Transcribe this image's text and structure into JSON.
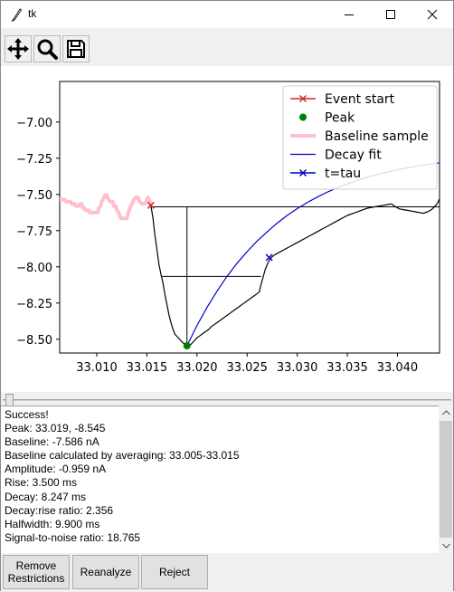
{
  "window": {
    "title": "tk"
  },
  "toolbar": {
    "buttons": [
      {
        "icon": "move-icon"
      },
      {
        "icon": "zoom-icon"
      },
      {
        "icon": "save-icon"
      }
    ]
  },
  "chart_data": {
    "type": "line",
    "title": "",
    "xlabel": "",
    "ylabel": "",
    "xlim": [
      33.0063,
      33.0442
    ],
    "ylim": [
      -8.595,
      -6.72
    ],
    "x_ticks": [
      "33.010",
      "33.015",
      "33.020",
      "33.025",
      "33.030",
      "33.035",
      "33.040"
    ],
    "x_tick_values": [
      33.01,
      33.015,
      33.02,
      33.025,
      33.03,
      33.035,
      33.04
    ],
    "y_ticks": [
      "−7.00",
      "−7.25",
      "−7.50",
      "−7.75",
      "−8.00",
      "−8.25",
      "−8.50"
    ],
    "y_tick_values": [
      -7.0,
      -7.25,
      -7.5,
      -7.75,
      -8.0,
      -8.25,
      -8.5
    ],
    "legend_position": "top-right",
    "colors": {
      "trace": "#000000",
      "event_start": "#d62728",
      "peak": "#008000",
      "baseline": "#ffc0cb",
      "decay_fit": "#0000cc",
      "tau": "#0000cc"
    },
    "series": [
      {
        "name": "Event start",
        "kind": "marker-x",
        "points": [
          [
            33.0154,
            -7.575
          ]
        ]
      },
      {
        "name": "Peak",
        "kind": "marker-dot",
        "points": [
          [
            33.019,
            -8.545
          ]
        ]
      },
      {
        "name": "Baseline sample",
        "kind": "thick-line",
        "points": [
          [
            33.0063,
            -7.535
          ],
          [
            33.0068,
            -7.535
          ],
          [
            33.0069,
            -7.55
          ],
          [
            33.0074,
            -7.55
          ],
          [
            33.0075,
            -7.565
          ],
          [
            33.0078,
            -7.565
          ],
          [
            33.0079,
            -7.58
          ],
          [
            33.0082,
            -7.58
          ],
          [
            33.0083,
            -7.565
          ],
          [
            33.0085,
            -7.565
          ],
          [
            33.0086,
            -7.595
          ],
          [
            33.0088,
            -7.595
          ],
          [
            33.0089,
            -7.61
          ],
          [
            33.0092,
            -7.61
          ],
          [
            33.0093,
            -7.625
          ],
          [
            33.0101,
            -7.625
          ],
          [
            33.0102,
            -7.595
          ],
          [
            33.0104,
            -7.58
          ],
          [
            33.0105,
            -7.55
          ],
          [
            33.0107,
            -7.525
          ],
          [
            33.0108,
            -7.505
          ],
          [
            33.011,
            -7.505
          ],
          [
            33.0111,
            -7.525
          ],
          [
            33.0113,
            -7.55
          ],
          [
            33.0116,
            -7.55
          ],
          [
            33.0117,
            -7.58
          ],
          [
            33.0119,
            -7.58
          ],
          [
            33.012,
            -7.61
          ],
          [
            33.0122,
            -7.625
          ],
          [
            33.0124,
            -7.665
          ],
          [
            33.013,
            -7.665
          ],
          [
            33.0131,
            -7.64
          ],
          [
            33.0133,
            -7.595
          ],
          [
            33.0135,
            -7.565
          ],
          [
            33.0137,
            -7.535
          ],
          [
            33.0139,
            -7.52
          ],
          [
            33.0141,
            -7.52
          ],
          [
            33.0143,
            -7.55
          ],
          [
            33.0145,
            -7.565
          ],
          [
            33.0148,
            -7.565
          ],
          [
            33.015,
            -7.535
          ],
          [
            33.0151,
            -7.52
          ],
          [
            33.0153,
            -7.55
          ],
          [
            33.0154,
            -7.575
          ]
        ]
      },
      {
        "name": "Decay fit",
        "kind": "line",
        "points": [
          [
            33.019,
            -8.545
          ],
          [
            33.02,
            -8.405
          ],
          [
            33.021,
            -8.28
          ],
          [
            33.022,
            -8.168
          ],
          [
            33.023,
            -8.065
          ],
          [
            33.024,
            -7.975
          ],
          [
            33.025,
            -7.895
          ],
          [
            33.026,
            -7.822
          ],
          [
            33.0272,
            -7.746
          ],
          [
            33.028,
            -7.698
          ],
          [
            33.029,
            -7.645
          ],
          [
            33.03,
            -7.598
          ],
          [
            33.031,
            -7.556
          ],
          [
            33.032,
            -7.518
          ],
          [
            33.033,
            -7.484
          ],
          [
            33.034,
            -7.454
          ],
          [
            33.035,
            -7.427
          ],
          [
            33.036,
            -7.403
          ],
          [
            33.037,
            -7.381
          ],
          [
            33.038,
            -7.362
          ],
          [
            33.039,
            -7.345
          ],
          [
            33.04,
            -7.33
          ],
          [
            33.041,
            -7.316
          ],
          [
            33.042,
            -7.304
          ],
          [
            33.043,
            -7.293
          ],
          [
            33.0442,
            -7.282
          ]
        ]
      },
      {
        "name": "t=tau",
        "kind": "marker-x",
        "points": [
          [
            33.0272,
            -7.935
          ]
        ]
      },
      {
        "name": "",
        "kind": "trace",
        "points": [
          [
            33.0154,
            -7.575
          ],
          [
            33.0156,
            -7.66
          ],
          [
            33.0158,
            -7.78
          ],
          [
            33.016,
            -7.88
          ],
          [
            33.0162,
            -7.98
          ],
          [
            33.0164,
            -8.05
          ],
          [
            33.0166,
            -8.11
          ],
          [
            33.0168,
            -8.19
          ],
          [
            33.017,
            -8.26
          ],
          [
            33.0172,
            -8.33
          ],
          [
            33.0174,
            -8.385
          ],
          [
            33.0176,
            -8.43
          ],
          [
            33.0178,
            -8.465
          ],
          [
            33.018,
            -8.48
          ],
          [
            33.0182,
            -8.495
          ],
          [
            33.0184,
            -8.51
          ],
          [
            33.0186,
            -8.525
          ],
          [
            33.0188,
            -8.535
          ],
          [
            33.019,
            -8.545
          ],
          [
            33.0192,
            -8.545
          ],
          [
            33.0194,
            -8.535
          ],
          [
            33.0196,
            -8.52
          ],
          [
            33.0198,
            -8.505
          ],
          [
            33.02,
            -8.49
          ],
          [
            33.0203,
            -8.475
          ],
          [
            33.0206,
            -8.46
          ],
          [
            33.0209,
            -8.445
          ],
          [
            33.0212,
            -8.43
          ],
          [
            33.0214,
            -8.415
          ],
          [
            33.0217,
            -8.4
          ],
          [
            33.022,
            -8.385
          ],
          [
            33.0223,
            -8.37
          ],
          [
            33.0226,
            -8.355
          ],
          [
            33.0229,
            -8.34
          ],
          [
            33.0232,
            -8.325
          ],
          [
            33.0235,
            -8.31
          ],
          [
            33.0238,
            -8.295
          ],
          [
            33.0241,
            -8.28
          ],
          [
            33.0244,
            -8.265
          ],
          [
            33.0247,
            -8.25
          ],
          [
            33.025,
            -8.235
          ],
          [
            33.0253,
            -8.22
          ],
          [
            33.0256,
            -8.205
          ],
          [
            33.0259,
            -8.19
          ],
          [
            33.0262,
            -8.175
          ],
          [
            33.0264,
            -8.12
          ],
          [
            33.0266,
            -8.07
          ],
          [
            33.0268,
            -8.02
          ],
          [
            33.027,
            -7.985
          ],
          [
            33.0272,
            -7.955
          ],
          [
            33.0275,
            -7.93
          ],
          [
            33.0278,
            -7.915
          ],
          [
            33.0282,
            -7.9
          ],
          [
            33.0286,
            -7.885
          ],
          [
            33.029,
            -7.87
          ],
          [
            33.0294,
            -7.855
          ],
          [
            33.0298,
            -7.84
          ],
          [
            33.0302,
            -7.825
          ],
          [
            33.0306,
            -7.81
          ],
          [
            33.031,
            -7.795
          ],
          [
            33.0314,
            -7.78
          ],
          [
            33.0318,
            -7.765
          ],
          [
            33.0322,
            -7.75
          ],
          [
            33.0326,
            -7.735
          ],
          [
            33.033,
            -7.72
          ],
          [
            33.0334,
            -7.705
          ],
          [
            33.0338,
            -7.69
          ],
          [
            33.0342,
            -7.675
          ],
          [
            33.0346,
            -7.66
          ],
          [
            33.035,
            -7.645
          ],
          [
            33.0354,
            -7.635
          ],
          [
            33.0358,
            -7.625
          ],
          [
            33.0362,
            -7.615
          ],
          [
            33.0366,
            -7.605
          ],
          [
            33.037,
            -7.595
          ],
          [
            33.0374,
            -7.59
          ],
          [
            33.0378,
            -7.585
          ],
          [
            33.0382,
            -7.58
          ],
          [
            33.0386,
            -7.575
          ],
          [
            33.039,
            -7.57
          ],
          [
            33.0394,
            -7.565
          ],
          [
            33.0398,
            -7.585
          ],
          [
            33.0402,
            -7.6
          ],
          [
            33.0406,
            -7.605
          ],
          [
            33.041,
            -7.61
          ],
          [
            33.0414,
            -7.615
          ],
          [
            33.0418,
            -7.62
          ],
          [
            33.0422,
            -7.625
          ],
          [
            33.0426,
            -7.63
          ],
          [
            33.043,
            -7.62
          ],
          [
            33.0434,
            -7.605
          ],
          [
            33.0437,
            -7.585
          ],
          [
            33.044,
            -7.56
          ],
          [
            33.0442,
            -7.53
          ]
        ]
      }
    ],
    "guides": {
      "baseline_y": -7.586,
      "baseline_x_range": [
        33.0154,
        33.0442
      ],
      "peak_vline_x": 33.019,
      "peak_vline_y_range": [
        -7.586,
        -8.545
      ],
      "halfwidth_y": -8.066,
      "halfwidth_x_range": [
        33.0165,
        33.0264
      ]
    }
  },
  "output": {
    "lines": [
      "Success!",
      "Peak: 33.019, -8.545",
      "Baseline: -7.586 nA",
      "Baseline calculated by averaging: 33.005-33.015",
      "Amplitude: -0.959 nA",
      "Rise: 3.500 ms",
      "Decay: 8.247 ms",
      "Decay:rise ratio: 2.356",
      "Halfwidth: 9.900 ms",
      "Signal-to-noise ratio: 18.765"
    ]
  },
  "buttons": {
    "remove_restrictions_line1": "Remove",
    "remove_restrictions_line2": "Restrictions",
    "reanalyze": "Reanalyze",
    "reject": "Reject"
  }
}
